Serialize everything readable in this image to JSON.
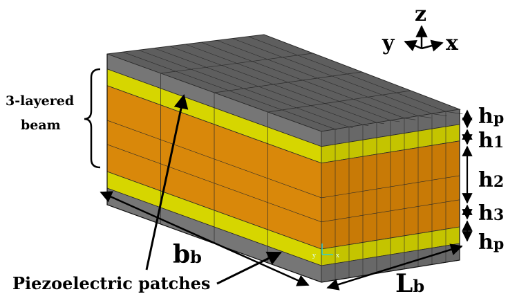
{
  "diagram": {
    "axes": {
      "z": "z",
      "y": "y",
      "x": "x"
    },
    "brace_label_line1": "3-layered",
    "brace_label_line2": "beam",
    "patch_label": "Piezoelectric patches",
    "width_label": {
      "main": "b",
      "sub": "b"
    },
    "length_label": {
      "main": "L",
      "sub": "b"
    },
    "thickness_labels": [
      {
        "main": "h",
        "sub": "p"
      },
      {
        "main": "h",
        "sub": "1"
      },
      {
        "main": "h",
        "sub": "2"
      },
      {
        "main": "h",
        "sub": "3"
      },
      {
        "main": "h",
        "sub": "p"
      }
    ],
    "mini_axes": {
      "y": "y",
      "x": "x"
    },
    "colors": {
      "piezo_gray": "#767676",
      "top_gray": "#5e5e5e",
      "side_gray": "#686868",
      "yellow": "#d6d600",
      "yellow_side": "#c4c400",
      "orange": "#d9880a",
      "orange_side": "#c87a06",
      "mesh": "#2a2a2a"
    }
  }
}
